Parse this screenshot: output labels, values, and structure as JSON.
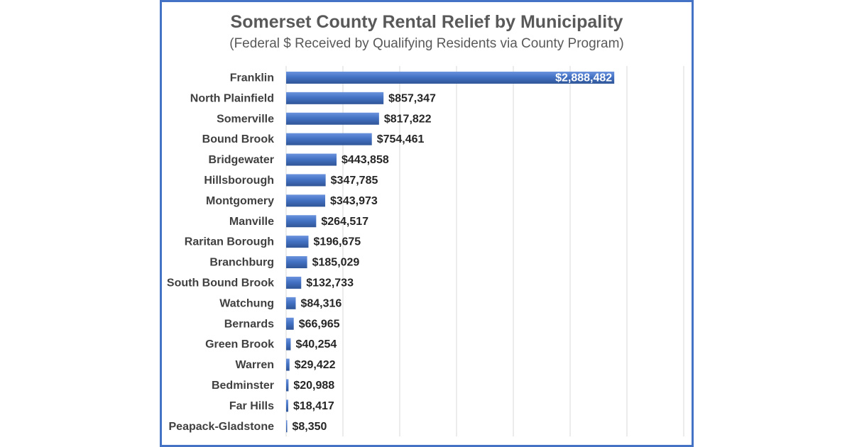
{
  "chart_data": {
    "type": "bar",
    "orientation": "horizontal",
    "title": "Somerset County Rental Relief by Municipality",
    "subtitle": "(Federal $ Received by Qualifying Residents via County Program)",
    "xlabel": "",
    "ylabel": "",
    "xlim": [
      0,
      3500000
    ],
    "grid": true,
    "legend": "none",
    "bar_color": "#4472c4",
    "frame_color": "#4472c4",
    "categories": [
      "Franklin",
      "North Plainfield",
      "Somerville",
      "Bound Brook",
      "Bridgewater",
      "Hillsborough",
      "Montgomery",
      "Manville",
      "Raritan Borough",
      "Branchburg",
      "South Bound Brook",
      "Watchung",
      "Bernards",
      "Green Brook",
      "Warren",
      "Bedminster",
      "Far Hills",
      "Peapack-Gladstone"
    ],
    "values": [
      2888482,
      857347,
      817822,
      754461,
      443858,
      347785,
      343973,
      264517,
      196675,
      185029,
      132733,
      84316,
      66965,
      40254,
      29422,
      20988,
      18417,
      8350
    ],
    "data_labels": [
      "$2,888,482",
      "$857,347",
      "$817,822",
      "$754,461",
      "$443,858",
      "$347,785",
      "$343,973",
      "$264,517",
      "$196,675",
      "$185,029",
      "$132,733",
      "$84,316",
      "$66,965",
      "$40,254",
      "$29,422",
      "$20,988",
      "$18,417",
      "$8,350"
    ]
  }
}
